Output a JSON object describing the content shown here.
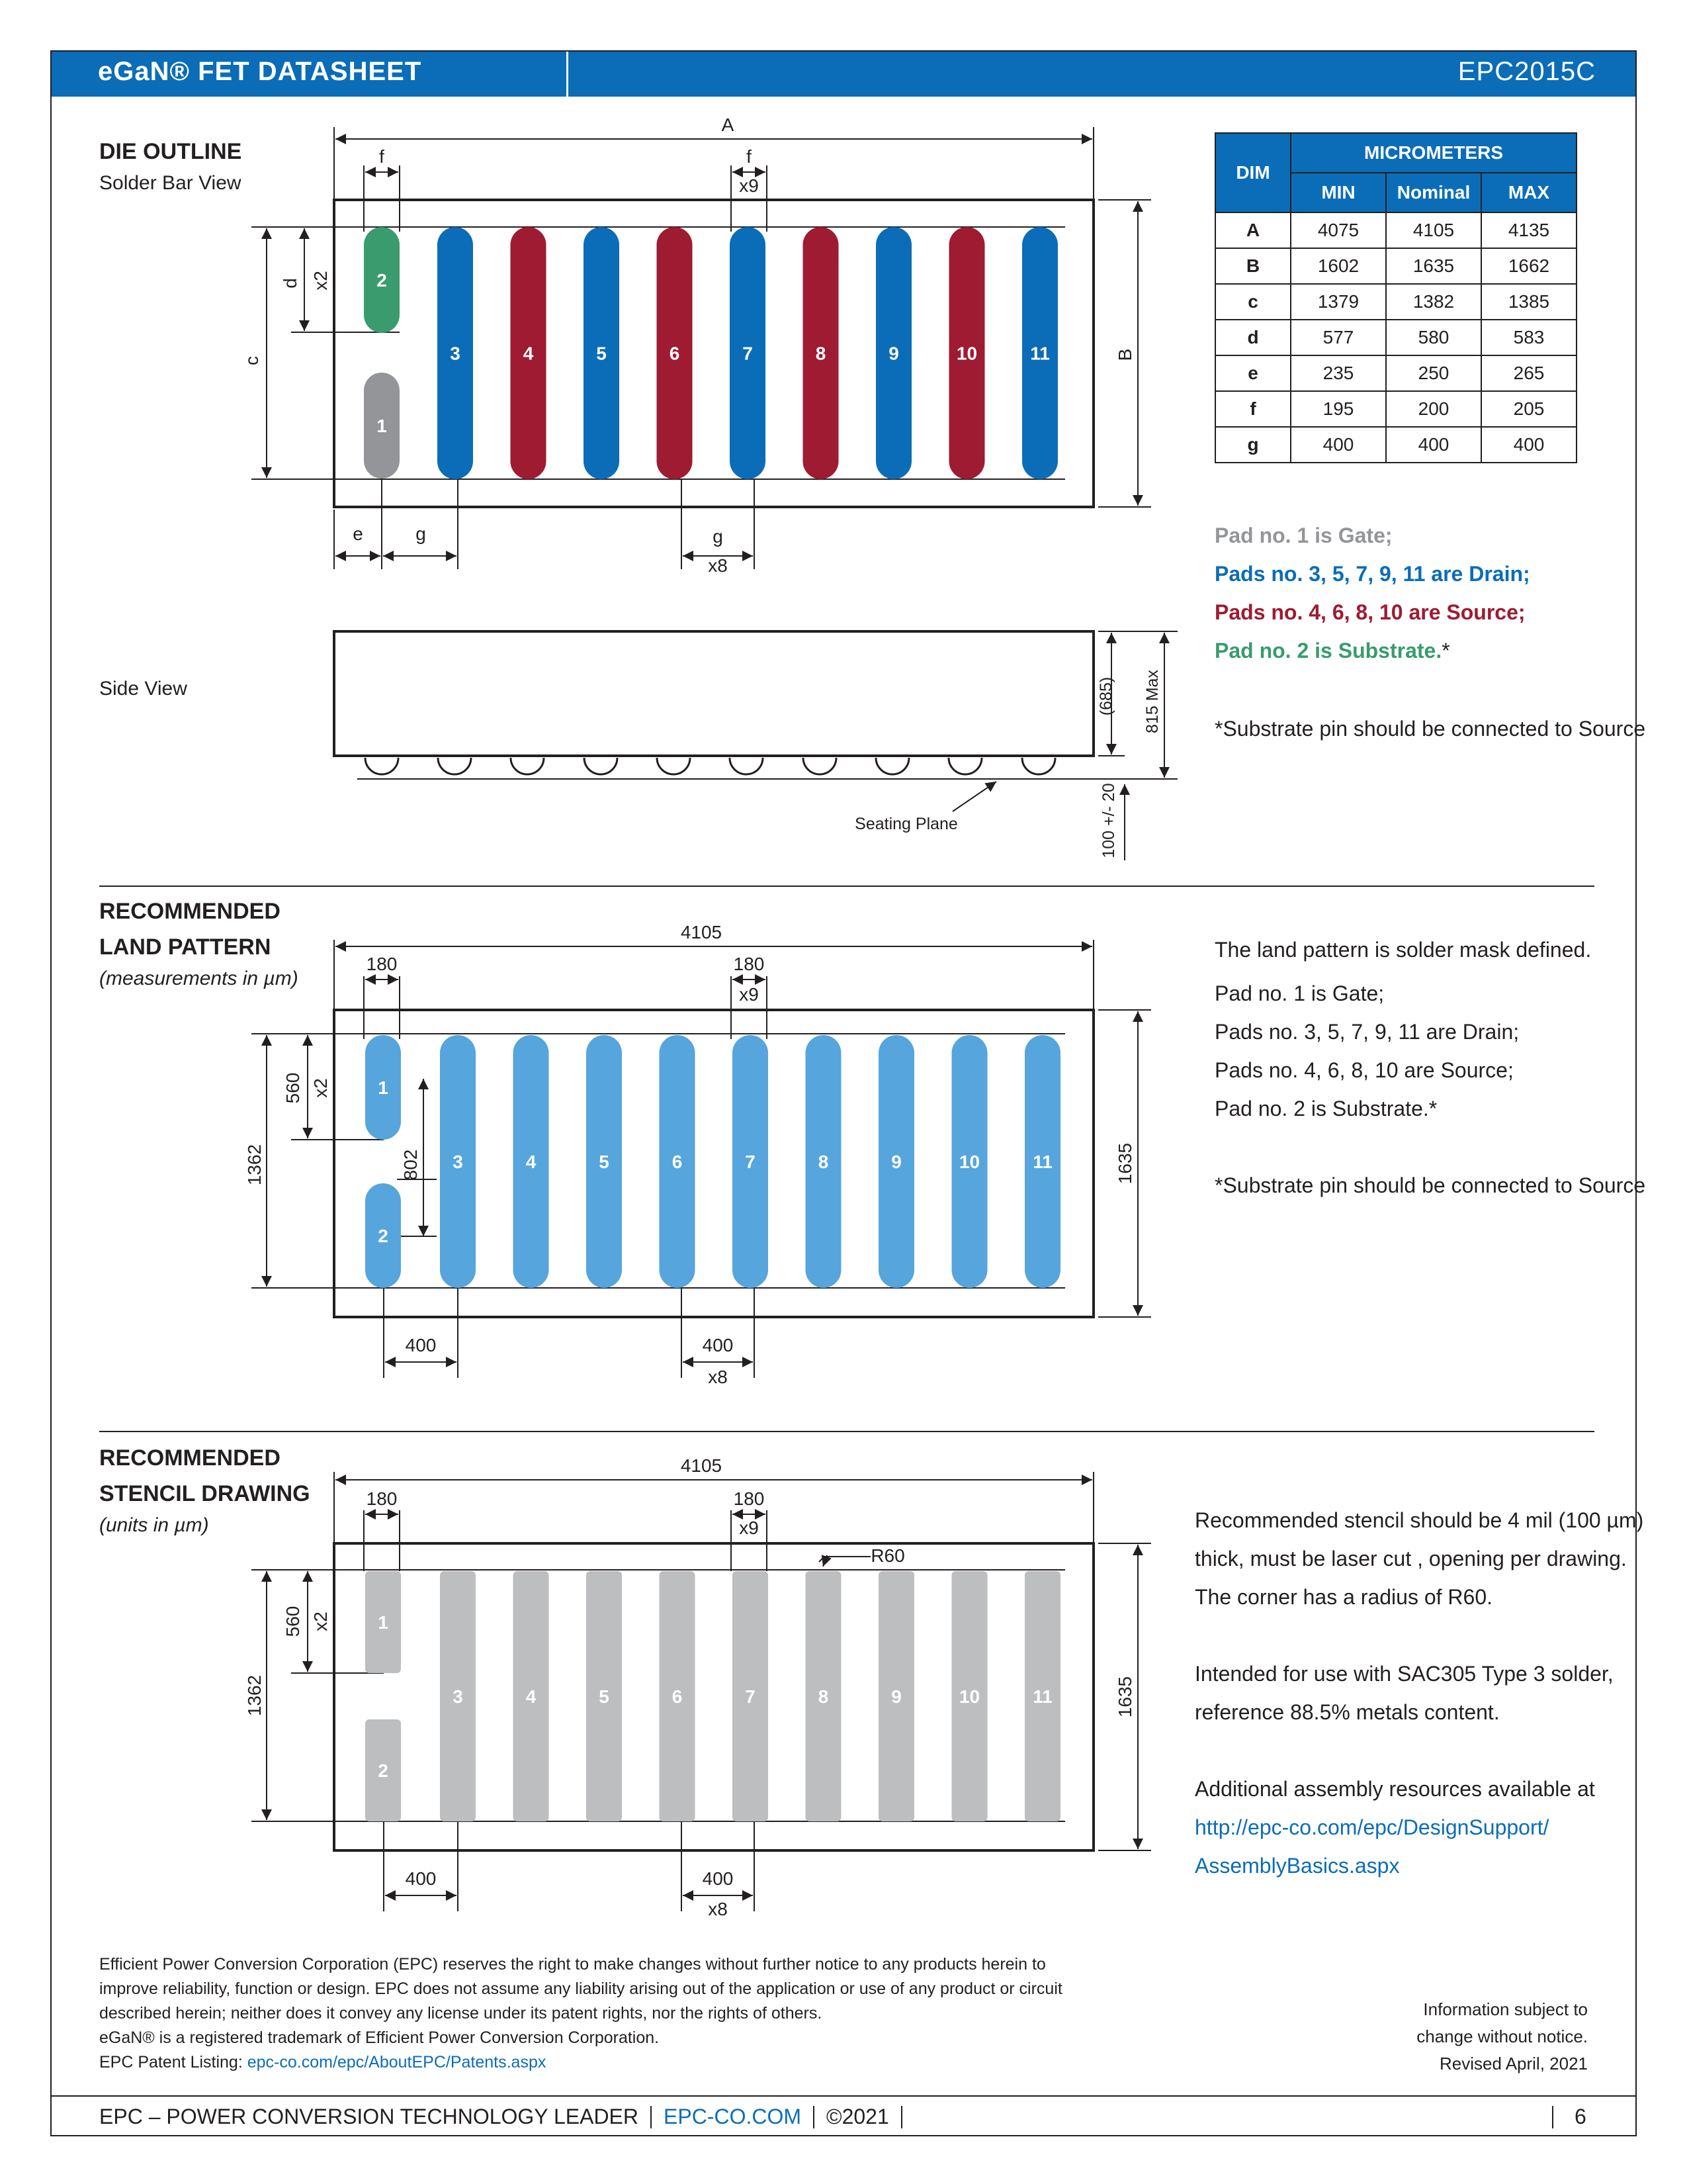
{
  "header": {
    "left": "eGaN® FET DATASHEET",
    "right": "EPC2015C"
  },
  "die_outline": {
    "title": "DIE OUTLINE",
    "subtitle": "Solder Bar View",
    "side_view": "Side View",
    "labels": {
      "A": "A",
      "B": "B",
      "c": "c",
      "d": "d",
      "e": "e",
      "f": "f",
      "g": "g",
      "x2": "x2",
      "x8": "x8",
      "x9": "x9"
    },
    "side_dims": {
      "d685": "(685)",
      "max815": "815 Max",
      "tol": "100 +/- 20",
      "seating": "Seating Plane"
    },
    "pads": [
      "2",
      "1",
      "3",
      "4",
      "5",
      "6",
      "7",
      "8",
      "9",
      "10",
      "11"
    ],
    "colors": {
      "gate": "#939598",
      "drain": "#0b6db7",
      "source": "#9e1b32",
      "substrate": "#3a9b6e"
    }
  },
  "dim_table": {
    "dim_header": "DIM",
    "group_header": "MICROMETERS",
    "cols": [
      "MIN",
      "Nominal",
      "MAX"
    ],
    "rows": [
      {
        "dim": "A",
        "min": "4075",
        "nom": "4105",
        "max": "4135"
      },
      {
        "dim": "B",
        "min": "1602",
        "nom": "1635",
        "max": "1662"
      },
      {
        "dim": "c",
        "min": "1379",
        "nom": "1382",
        "max": "1385"
      },
      {
        "dim": "d",
        "min": "577",
        "nom": "580",
        "max": "583"
      },
      {
        "dim": "e",
        "min": "235",
        "nom": "250",
        "max": "265"
      },
      {
        "dim": "f",
        "min": "195",
        "nom": "200",
        "max": "205"
      },
      {
        "dim": "g",
        "min": "400",
        "nom": "400",
        "max": "400"
      }
    ]
  },
  "pad_notes": {
    "gate": "Pad no. 1 is Gate;",
    "drain": "Pads no. 3, 5, 7, 9, 11 are Drain;",
    "source": "Pads no. 4, 6, 8, 10 are Source;",
    "substrate": "Pad no. 2 is Substrate.",
    "asterisk": "*",
    "footnote": "*Substrate pin should be connected to Source"
  },
  "land_pattern": {
    "title1": "RECOMMENDED",
    "title2": "LAND PATTERN",
    "subtitle": "(measurements in µm)",
    "dims": {
      "w": "4105",
      "h": "1635",
      "c": "1362",
      "pad_w": "180",
      "pad_h": "560",
      "gap": "802",
      "pitch": "400",
      "x2": "x2",
      "x8": "x8",
      "x9": "x9"
    },
    "pads": [
      "1",
      "2",
      "3",
      "4",
      "5",
      "6",
      "7",
      "8",
      "9",
      "10",
      "11"
    ],
    "notes": [
      "The land pattern is solder mask defined.",
      "Pad no. 1 is Gate;",
      "Pads no. 3, 5, 7, 9, 11 are Drain;",
      "Pads no. 4, 6, 8, 10 are Source;",
      "Pad no. 2 is Substrate.*",
      "*Substrate pin should be connected to Source"
    ],
    "pad_color": "#56a5dc"
  },
  "stencil": {
    "title1": "RECOMMENDED",
    "title2": "STENCIL DRAWING",
    "subtitle": "(units in µm)",
    "dims": {
      "w": "4105",
      "h": "1635",
      "c": "1362",
      "pad_w": "180",
      "pad_h": "560",
      "pitch": "400",
      "radius": "R60",
      "x2": "x2",
      "x8": "x8",
      "x9": "x9"
    },
    "pads": [
      "1",
      "2",
      "3",
      "4",
      "5",
      "6",
      "7",
      "8",
      "9",
      "10",
      "11"
    ],
    "notes": [
      "Recommended stencil should be 4 mil (100 µm)",
      "thick, must be laser cut , opening per drawing.",
      "The corner has a radius of R60.",
      "Intended for use with SAC305 Type 3 solder,",
      "reference 88.5% metals content.",
      "Additional assembly resources available at",
      "http://epc-co.com/epc/DesignSupport/",
      "AssemblyBasics.aspx"
    ],
    "pad_color": "#bcbec0"
  },
  "disclaimer": {
    "lines": [
      "Efficient Power Conversion Corporation (EPC) reserves the right to make changes without further notice to any products herein to",
      "improve reliability, function or design. EPC does not assume any liability arising out of the application or use of any product or circuit",
      "described herein; neither does it convey any license under its patent rights, nor the rights of others.",
      "eGaN® is a registered trademark of Efficient Power Conversion Corporation."
    ],
    "patent_label": "EPC Patent Listing: ",
    "patent_link": "epc-co.com/epc/AboutEPC/Patents.aspx"
  },
  "info": {
    "line1": "Information subject to",
    "line2": "change without notice.",
    "line3": "Revised April, 2021"
  },
  "footer": {
    "tagline": "EPC – POWER CONVERSION TECHNOLOGY LEADER",
    "site": "EPC-CO.COM",
    "copyright": "©2021",
    "page": "6"
  }
}
